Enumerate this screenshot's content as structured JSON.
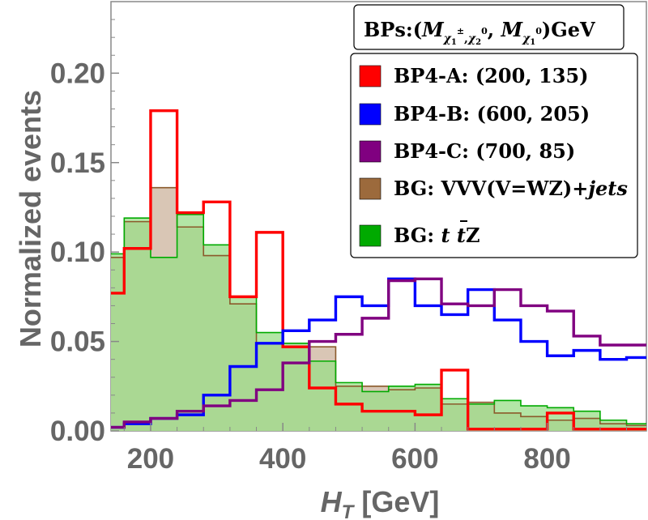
{
  "chart_data": {
    "type": "histogram",
    "xlabel": "H_T [GeV]",
    "xlabel_main": "H",
    "xlabel_sub": "T",
    "xlabel_unit": "[GeV]",
    "ylabel": "Normalized events",
    "xlim": [
      140,
      950
    ],
    "ylim": [
      0,
      0.24
    ],
    "x_ticks": [
      200,
      400,
      600,
      800
    ],
    "x_tick_labels": [
      "200",
      "400",
      "600",
      "800"
    ],
    "y_ticks": [
      0,
      0.05,
      0.1,
      0.15,
      0.2
    ],
    "y_tick_labels": [
      "0.00",
      "0.05",
      "0.10",
      "0.15",
      "0.20"
    ],
    "bin_edges": [
      140,
      160,
      200,
      240,
      280,
      320,
      360,
      400,
      440,
      480,
      520,
      560,
      600,
      640,
      680,
      720,
      760,
      800,
      840,
      880,
      920,
      950
    ],
    "legend_header": {
      "prefix": "BPs:(",
      "m1": "M",
      "m1_sub": "χ",
      "m1_sub2": "1",
      "m1_sup": "±",
      "m1_sep": ",",
      "m1_sub3": "χ",
      "m1_sub4": "2",
      "m1_sup2": "0",
      "comma": ", ",
      "m2": "M",
      "m2_sub": "χ",
      "m2_sub2": "1",
      "m2_sup": "0",
      "suffix": ")GeV"
    },
    "series": [
      {
        "name": "BG: VVV(V=WZ)+jets",
        "label_main": "BG: VVV(V=WZ)+",
        "label_italic": "jets",
        "style": "filled",
        "color": "#8B5A2B",
        "fill": "#d9c6b5",
        "values": [
          0.097,
          0.117,
          0.136,
          0.114,
          0.098,
          0.071,
          0.049,
          0.047,
          0.047,
          0.025,
          0.025,
          0.023,
          0.024,
          0.015,
          0.016,
          0.01,
          0.008,
          0.006,
          0.007,
          0.004,
          0.003
        ]
      },
      {
        "name": "BG: ttZ",
        "label_main": "BG: ",
        "label_italic": "t t",
        "label_tail": "Z",
        "style": "filled",
        "color": "#00aa00",
        "fill": "#99dd88",
        "values": [
          0.099,
          0.119,
          0.097,
          0.121,
          0.104,
          0.075,
          0.055,
          0.049,
          0.039,
          0.027,
          0.022,
          0.025,
          0.026,
          0.018,
          0.015,
          0.017,
          0.014,
          0.013,
          0.011,
          0.006,
          0.004
        ]
      },
      {
        "name": "BP4-A: (200, 135)",
        "style": "line",
        "color": "#ff0000",
        "values": [
          0.077,
          0.102,
          0.179,
          0.122,
          0.128,
          0.075,
          0.111,
          0.047,
          0.024,
          0.015,
          0.011,
          0.011,
          0.009,
          0.034,
          0.001,
          0.001,
          0.001,
          0.01,
          0.001,
          0.001,
          0.001
        ]
      },
      {
        "name": "BP4-B: (600, 205)",
        "style": "line",
        "color": "#0000ff",
        "values": [
          0.002,
          0.004,
          0.007,
          0.009,
          0.02,
          0.036,
          0.049,
          0.056,
          0.062,
          0.075,
          0.07,
          0.085,
          0.07,
          0.065,
          0.079,
          0.062,
          0.05,
          0.042,
          0.045,
          0.04,
          0.041
        ]
      },
      {
        "name": "BP4-C: (700, 85)",
        "style": "line",
        "color": "#800080",
        "values": [
          0.002,
          0.005,
          0.007,
          0.011,
          0.014,
          0.017,
          0.023,
          0.038,
          0.05,
          0.054,
          0.063,
          0.084,
          0.085,
          0.071,
          0.07,
          0.079,
          0.07,
          0.067,
          0.053,
          0.048,
          0.048
        ]
      }
    ],
    "legend_order": [
      "BP4-A: (200, 135)",
      "BP4-B: (600, 205)",
      "BP4-C: (700, 85)",
      "BG: VVV(V=WZ)+jets",
      "BG: ttZ"
    ],
    "legend_swatch_colors": [
      "#ff0000",
      "#0000ff",
      "#800080",
      "#9c6a3c",
      "#00aa00"
    ],
    "legend_position": "top-right"
  }
}
